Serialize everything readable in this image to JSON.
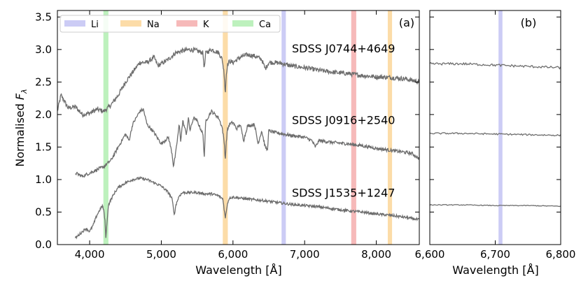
{
  "chart_data": {
    "type": "line",
    "ylabel": "Normalised",
    "ylabel_sub": "λ",
    "ylabel_var": "F",
    "ylim": [
      0.0,
      3.6
    ],
    "yticks": [
      0.0,
      0.5,
      1.0,
      1.5,
      2.0,
      2.5,
      3.0,
      3.5
    ],
    "ytick_labels": [
      "0.0",
      "0.5",
      "1.0",
      "1.5",
      "2.0",
      "2.5",
      "3.0",
      "3.5"
    ],
    "line_color": "#6e6e6e",
    "legend": {
      "placement": "top-left",
      "entries": [
        {
          "label": "Li",
          "color": "#ccccf5"
        },
        {
          "label": "Na",
          "color": "#fcdca8"
        },
        {
          "label": "K",
          "color": "#f6b9b9"
        },
        {
          "label": "Ca",
          "color": "#bdf1bd"
        }
      ]
    },
    "panels": [
      {
        "label": "(a)",
        "xlabel": "Wavelength [Å]",
        "xlim": [
          3550,
          8600
        ],
        "xticks": [
          4000,
          5000,
          6000,
          7000,
          8000
        ],
        "xtick_labels": [
          "4,000",
          "5,000",
          "6,000",
          "7,000",
          "8,000"
        ],
        "bands": [
          {
            "element": "Ca",
            "center": 4227,
            "width": 70,
            "color": "#bdf1bd"
          },
          {
            "element": "Na",
            "center": 5893,
            "width": 70,
            "color": "#fcdca8"
          },
          {
            "element": "Li",
            "center": 6708,
            "width": 60,
            "color": "#ccccf5"
          },
          {
            "element": "K",
            "center": 7685,
            "width": 70,
            "color": "#f6b9b9"
          },
          {
            "element": "Na",
            "center": 8190,
            "width": 60,
            "color": "#fcdca8"
          }
        ],
        "series": [
          {
            "name": "SDSS J0744+4649",
            "label_at": [
              5850,
              3.02
            ],
            "noise": 0.035,
            "x": [
              3550,
              3600,
              3700,
              3800,
              3900,
              4000,
              4100,
              4200,
              4300,
              4400,
              4500,
              4600,
              4700,
              4800,
              4900,
              4950,
              5000,
              5100,
              5200,
              5300,
              5400,
              5500,
              5580,
              5600,
              5620,
              5700,
              5800,
              5850,
              5880,
              5893,
              5905,
              5920,
              5950,
              6000,
              6100,
              6200,
              6300,
              6400,
              6450,
              6500,
              6600,
              6700,
              6800,
              7000,
              7200,
              7400,
              7600,
              7800,
              8000,
              8200,
              8400,
              8600
            ],
            "y": [
              2.05,
              2.3,
              2.1,
              2.12,
              2.0,
              2.02,
              2.08,
              2.05,
              2.15,
              2.3,
              2.5,
              2.65,
              2.8,
              2.8,
              2.88,
              2.75,
              2.78,
              2.85,
              2.95,
              2.98,
              3.0,
              2.98,
              2.95,
              2.7,
              2.95,
              3.0,
              2.95,
              2.85,
              2.6,
              2.3,
              2.6,
              2.75,
              2.82,
              2.8,
              2.88,
              2.92,
              2.9,
              2.85,
              2.7,
              2.8,
              2.8,
              2.78,
              2.75,
              2.72,
              2.68,
              2.65,
              2.63,
              2.6,
              2.58,
              2.57,
              2.55,
              2.5
            ]
          },
          {
            "name": "SDSS J0916+2540",
            "label_at": [
              5850,
              1.92
            ],
            "noise": 0.025,
            "x": [
              3800,
              3900,
              4000,
              4100,
              4200,
              4300,
              4400,
              4500,
              4550,
              4600,
              4700,
              4750,
              4800,
              4900,
              5000,
              5100,
              5150,
              5170,
              5185,
              5200,
              5250,
              5270,
              5300,
              5350,
              5380,
              5400,
              5450,
              5500,
              5580,
              5600,
              5620,
              5700,
              5800,
              5850,
              5880,
              5893,
              5905,
              5920,
              5950,
              6000,
              6050,
              6100,
              6150,
              6200,
              6300,
              6350,
              6400,
              6450,
              6480,
              6500,
              6600,
              6700,
              6800,
              7000,
              7100,
              7150,
              7200,
              7400,
              7600,
              7800,
              8000,
              8200,
              8400,
              8500,
              8600
            ],
            "y": [
              1.1,
              1.05,
              1.1,
              1.15,
              1.2,
              1.3,
              1.5,
              1.7,
              1.6,
              1.85,
              2.05,
              2.08,
              1.85,
              1.72,
              1.55,
              1.65,
              1.4,
              1.2,
              1.3,
              1.4,
              1.85,
              1.6,
              1.9,
              1.7,
              1.95,
              1.75,
              1.95,
              1.9,
              1.7,
              1.35,
              1.9,
              2.05,
              1.95,
              1.8,
              1.55,
              1.3,
              1.55,
              1.75,
              1.85,
              1.88,
              1.78,
              1.85,
              1.6,
              1.82,
              1.85,
              1.55,
              1.75,
              1.5,
              1.45,
              1.75,
              1.72,
              1.7,
              1.68,
              1.65,
              1.6,
              1.5,
              1.6,
              1.57,
              1.55,
              1.52,
              1.48,
              1.45,
              1.42,
              1.4,
              1.32
            ]
          },
          {
            "name": "SDSS J1535+1247",
            "label_at": [
              5850,
              0.8
            ],
            "noise": 0.02,
            "x": [
              3800,
              3850,
              3900,
              3950,
              4000,
              4050,
              4100,
              4150,
              4180,
              4200,
              4215,
              4227,
              4240,
              4260,
              4300,
              4350,
              4400,
              4500,
              4600,
              4700,
              4800,
              4900,
              5000,
              5100,
              5150,
              5170,
              5185,
              5200,
              5250,
              5300,
              5400,
              5500,
              5600,
              5700,
              5800,
              5860,
              5893,
              5920,
              5950,
              6000,
              6200,
              6400,
              6600,
              6800,
              7000,
              7200,
              7400,
              7600,
              7800,
              8000,
              8200,
              8400,
              8600
            ],
            "y": [
              0.1,
              0.15,
              0.2,
              0.25,
              0.2,
              0.3,
              0.45,
              0.55,
              0.6,
              0.5,
              0.35,
              0.1,
              0.3,
              0.6,
              0.7,
              0.8,
              0.88,
              0.95,
              1.0,
              1.02,
              1.0,
              0.95,
              0.9,
              0.8,
              0.7,
              0.55,
              0.45,
              0.6,
              0.75,
              0.8,
              0.8,
              0.8,
              0.78,
              0.78,
              0.75,
              0.7,
              0.4,
              0.62,
              0.72,
              0.73,
              0.7,
              0.68,
              0.65,
              0.62,
              0.6,
              0.58,
              0.55,
              0.52,
              0.5,
              0.47,
              0.45,
              0.42,
              0.38
            ]
          }
        ]
      },
      {
        "label": "(b)",
        "xlabel": "Wavelength [Å]",
        "xlim": [
          6600,
          6800
        ],
        "xticks": [
          6600,
          6700,
          6800
        ],
        "xtick_labels": [
          "6,600",
          "6,700",
          "6,800"
        ],
        "bands": [
          {
            "element": "Li",
            "center": 6708,
            "width": 6,
            "color": "#ccccf5"
          }
        ],
        "series": [
          {
            "name": "SDSS J0744+4649",
            "noise": 0.018,
            "x": [
              6600,
              6650,
              6700,
              6750,
              6800
            ],
            "y": [
              2.78,
              2.78,
              2.76,
              2.74,
              2.72
            ]
          },
          {
            "name": "SDSS J0916+2540",
            "noise": 0.012,
            "x": [
              6600,
              6650,
              6700,
              6750,
              6800
            ],
            "y": [
              1.71,
              1.71,
              1.7,
              1.69,
              1.68
            ]
          },
          {
            "name": "SDSS J1535+1247",
            "noise": 0.006,
            "x": [
              6600,
              6650,
              6700,
              6750,
              6800
            ],
            "y": [
              0.61,
              0.61,
              0.6,
              0.6,
              0.59
            ]
          }
        ]
      }
    ]
  }
}
